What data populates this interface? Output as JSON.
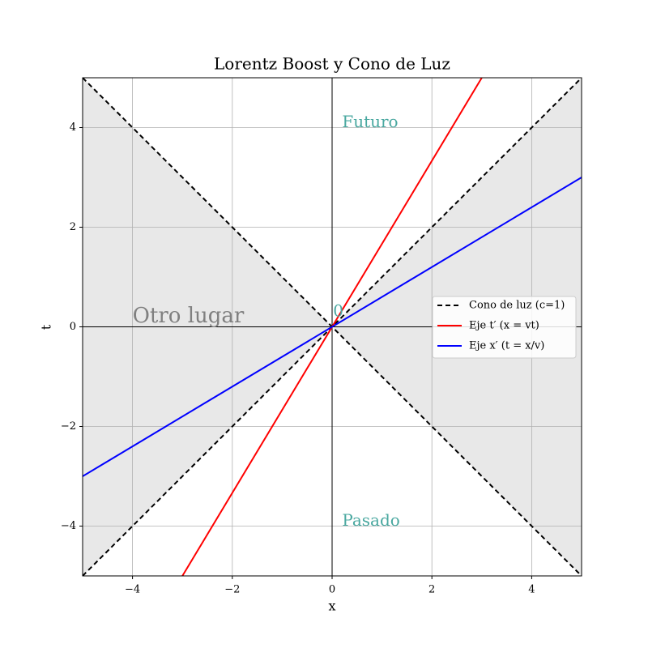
{
  "chart_data": {
    "type": "line",
    "title": "Lorentz Boost y Cono de Luz",
    "x_label": "x",
    "y_label": "t",
    "xlim": [
      -5,
      5
    ],
    "ylim": [
      -5,
      5
    ],
    "xticks": [
      {
        "value": -4,
        "label": "−4"
      },
      {
        "value": -2,
        "label": "−2"
      },
      0,
      2,
      4
    ],
    "yticks": [
      {
        "value": -4,
        "label": "−4"
      },
      {
        "value": -2,
        "label": "−2"
      },
      0,
      2,
      4
    ],
    "grid": true,
    "legend": "right",
    "shade_color": "#e8e8e8",
    "series": [
      {
        "name": "Cono de luz (c=1)",
        "color": "#000000",
        "dashed": true,
        "x": [
          -5,
          5,
          0,
          -5,
          5
        ],
        "values": [
          -5,
          5,
          null,
          5,
          -5
        ]
      },
      {
        "name": "Eje t′ (x = vt)",
        "color": "#ff0000",
        "x": [
          -3,
          3
        ],
        "values": [
          -5,
          5
        ]
      },
      {
        "name": "Eje x′ (t = x/v)",
        "color": "#0000ff",
        "x": [
          -5,
          5
        ],
        "values": [
          -3,
          3
        ]
      }
    ],
    "annotations": [
      {
        "text": "Futuro",
        "color": "#4aa8a0"
      },
      {
        "text": "Pasado",
        "color": "#4aa8a0"
      },
      {
        "text": "Otro lugar",
        "color": "#808080"
      },
      {
        "text": "0",
        "color": "#4aa8a0"
      }
    ]
  }
}
